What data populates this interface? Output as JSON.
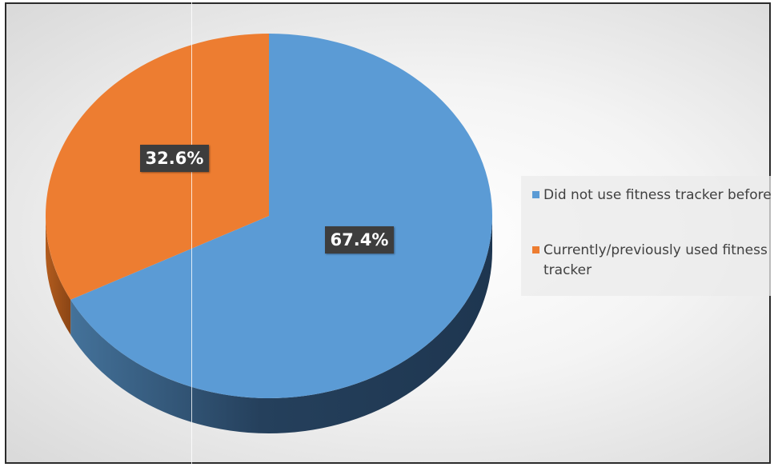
{
  "chart_data": {
    "type": "pie",
    "style": "3d",
    "legend_position": "right",
    "slices": [
      {
        "label": "Did not use fitness tracker before",
        "value": 67.4,
        "display": "67.4%",
        "color": "#5b9bd5"
      },
      {
        "label": "Currently/previously used fitness tracker",
        "value": 32.6,
        "display": "32.6%",
        "color": "#ed7d31"
      }
    ]
  }
}
